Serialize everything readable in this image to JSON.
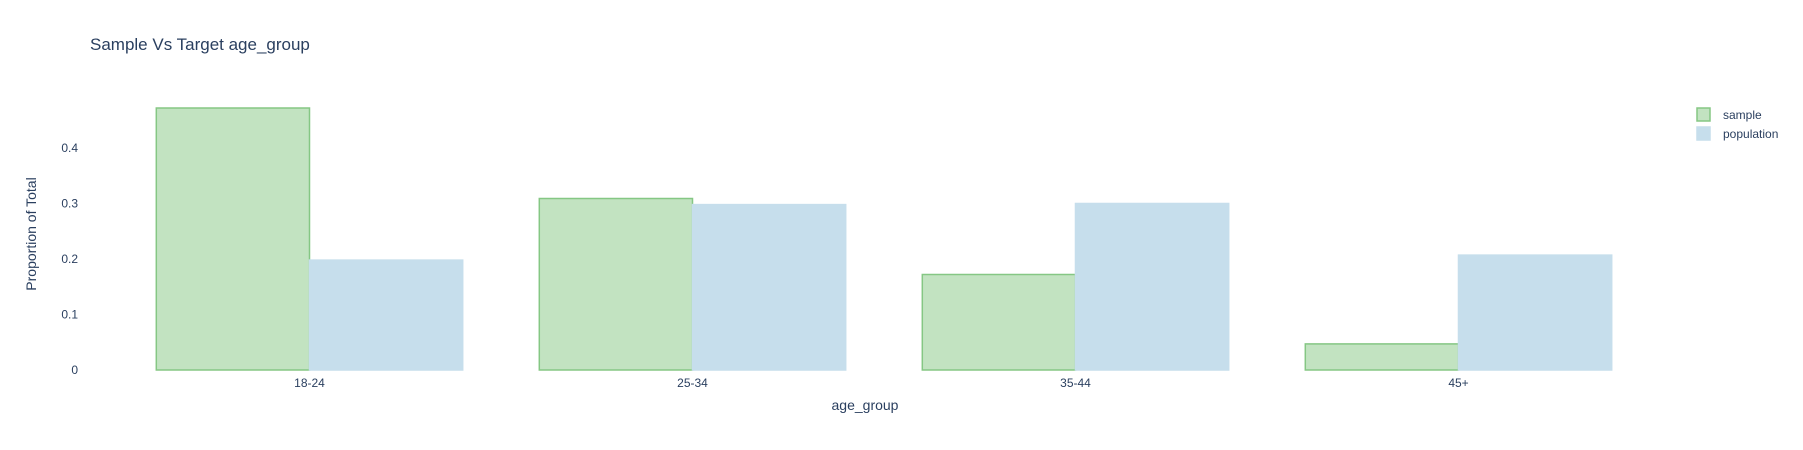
{
  "chart_data": {
    "type": "bar",
    "title": "Sample Vs Target age_group",
    "xlabel": "age_group",
    "ylabel": "Proportion of Total",
    "categories": [
      "18-24",
      "25-34",
      "35-44",
      "45+"
    ],
    "series": [
      {
        "name": "sample",
        "values": [
          0.472,
          0.309,
          0.172,
          0.047
        ],
        "fill": "#c2e3c1",
        "stroke": "#85c784"
      },
      {
        "name": "population",
        "values": [
          0.198,
          0.298,
          0.3,
          0.207
        ],
        "fill": "#c6deec",
        "stroke": "#c6deec"
      }
    ],
    "ylim": [
      0,
      0.49
    ],
    "yticks": [
      0,
      0.1,
      0.2,
      0.3,
      0.4
    ],
    "ytick_labels": [
      "0",
      "0.1",
      "0.2",
      "0.3",
      "0.4"
    ],
    "grid": false,
    "legend_position": "top-right"
  }
}
